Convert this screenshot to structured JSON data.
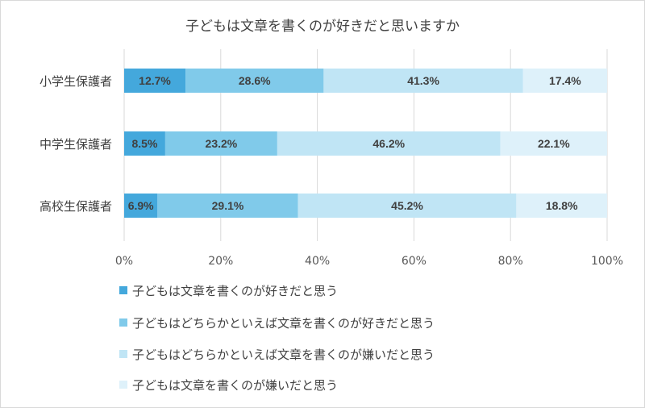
{
  "chart_data": {
    "type": "bar",
    "orientation": "horizontal",
    "stacked": "percent",
    "title": "子どもは文章を書くのが好きだと思いますか",
    "categories": [
      "小学生保護者",
      "中学生保護者",
      "高校生保護者"
    ],
    "series": [
      {
        "name": "子どもは文章を書くのが好きだと思う",
        "color": "#44a8dc",
        "values": [
          12.7,
          8.5,
          6.9
        ],
        "labels": [
          "12.7%",
          "8.5%",
          "6.9%"
        ]
      },
      {
        "name": "子どもはどちらかといえば文章を書くのが好きだと思う",
        "color": "#80caea",
        "values": [
          28.6,
          23.2,
          29.1
        ],
        "labels": [
          "28.6%",
          "23.2%",
          "29.1%"
        ]
      },
      {
        "name": "子どもはどちらかといえば文章を書くのが嫌いだと思う",
        "color": "#c0e5f5",
        "values": [
          41.3,
          46.2,
          45.2
        ],
        "labels": [
          "41.3%",
          "46.2%",
          "45.2%"
        ]
      },
      {
        "name": "子どもは文章を書くのが嫌いだと思う",
        "color": "#def1fa",
        "values": [
          17.4,
          22.1,
          18.8
        ],
        "labels": [
          "17.4%",
          "22.1%",
          "18.8%"
        ]
      }
    ],
    "xlim": [
      0,
      100
    ],
    "x_ticks": [
      "0%",
      "20%",
      "40%",
      "60%",
      "80%",
      "100%"
    ],
    "grid": true,
    "legend": "bottom"
  }
}
